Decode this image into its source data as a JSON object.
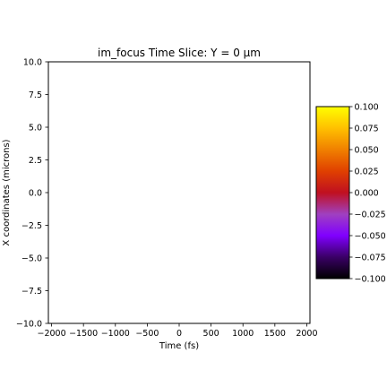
{
  "chart_data": {
    "type": "heatmap",
    "title": "im_focus Time Slice: Y = 0 µm",
    "xlabel": "Time (fs)",
    "ylabel": "X coordinates (microns)",
    "xlim": [
      -2050,
      2050
    ],
    "ylim": [
      -10.0,
      10.0
    ],
    "x_ticks": [
      "−2000",
      "−1500",
      "−1000",
      "−500",
      "0",
      "500",
      "1000",
      "1500",
      "2000"
    ],
    "x_tick_values": [
      -2000,
      -1500,
      -1000,
      -500,
      0,
      500,
      1000,
      1500,
      2000
    ],
    "y_ticks": [
      "10.0",
      "7.5",
      "5.0",
      "2.5",
      "0.0",
      "−2.5",
      "−5.0",
      "−7.5",
      "−10.0"
    ],
    "y_tick_values": [
      10.0,
      7.5,
      5.0,
      2.5,
      0.0,
      -2.5,
      -5.0,
      -7.5,
      -10.0
    ],
    "values": [],
    "colorbar": {
      "colormap": "gnuplot-like (black → purple → red → orange → yellow)",
      "range": [
        -0.1,
        0.1
      ],
      "ticks": [
        "0.100",
        "0.075",
        "0.050",
        "0.025",
        "0.000",
        "−0.025",
        "−0.050",
        "−0.075",
        "−0.100"
      ],
      "tick_values": [
        0.1,
        0.075,
        0.05,
        0.025,
        0.0,
        -0.025,
        -0.05,
        -0.075,
        -0.1
      ],
      "stops": [
        "#000000",
        "#3a0066",
        "#8000ff",
        "#a040c0",
        "#c01020",
        "#e04000",
        "#f08000",
        "#ffc000",
        "#ffff00"
      ]
    },
    "grid": false,
    "legend": "none"
  }
}
